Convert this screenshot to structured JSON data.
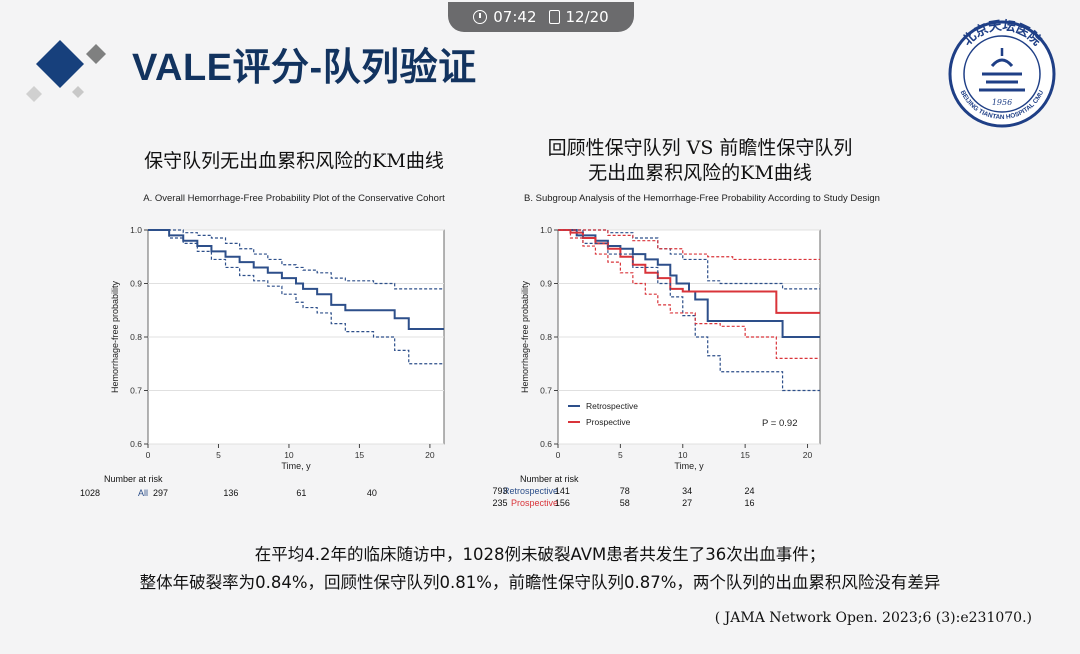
{
  "status": {
    "time": "07:42",
    "page": "12/20"
  },
  "title": "VALE评分-队列验证",
  "logo": {
    "text_top": "北京天坛医院",
    "text_ring": "BEIJING TIANTAN HOSPITAL CMU",
    "year": "1956"
  },
  "chart_data": [
    {
      "type": "line",
      "chart_title": "保守队列无出血累积风险的KM曲线",
      "title": "A. Overall Hemorrhage-Free Probability Plot of the Conservative Cohort",
      "xlabel": "Time, y",
      "ylabel": "Hemorrhage-free probability",
      "xlim": [
        0,
        21
      ],
      "ylim": [
        0.6,
        1.0
      ],
      "xticks": [
        "0",
        "5",
        "10",
        "15",
        "20"
      ],
      "yticks": [
        "0.6",
        "0.7",
        "0.8",
        "0.9",
        "1.0"
      ],
      "grid": true,
      "series": [
        {
          "color": "#2d4f8a",
          "style": "solid",
          "x": [
            0,
            1.5,
            2.5,
            3.5,
            4.5,
            5.5,
            6.5,
            7.5,
            8.5,
            9.5,
            10.5,
            11,
            12,
            13,
            14,
            16,
            17.5,
            18.5,
            21
          ],
          "y": [
            1.0,
            0.99,
            0.98,
            0.97,
            0.96,
            0.95,
            0.94,
            0.93,
            0.92,
            0.91,
            0.9,
            0.89,
            0.88,
            0.86,
            0.85,
            0.85,
            0.835,
            0.815,
            0.815
          ]
        },
        {
          "color": "#2d4f8a",
          "style": "dashed",
          "x": [
            0,
            1.5,
            2.5,
            3.5,
            4.5,
            5.5,
            6.5,
            7.5,
            8.5,
            9.5,
            10.5,
            11,
            12,
            13,
            14,
            16,
            17.5,
            18.5,
            21
          ],
          "y": [
            1.0,
            1.0,
            0.995,
            0.99,
            0.985,
            0.975,
            0.965,
            0.955,
            0.945,
            0.935,
            0.93,
            0.925,
            0.92,
            0.91,
            0.905,
            0.9,
            0.89,
            0.89,
            0.89
          ]
        },
        {
          "color": "#2d4f8a",
          "style": "dashed",
          "x": [
            0,
            1.5,
            2.5,
            3.5,
            4.5,
            5.5,
            6.5,
            7.5,
            8.5,
            9.5,
            10.5,
            11,
            12,
            13,
            14,
            16,
            17.5,
            18.5,
            21
          ],
          "y": [
            1.0,
            0.985,
            0.975,
            0.96,
            0.945,
            0.93,
            0.915,
            0.905,
            0.895,
            0.88,
            0.865,
            0.855,
            0.845,
            0.825,
            0.81,
            0.8,
            0.775,
            0.75,
            0.75
          ]
        }
      ],
      "risk_table": {
        "label": "Number at risk",
        "rows": [
          {
            "name": "All",
            "color": "#2d4f8a",
            "values": [
              "1028",
              "297",
              "136",
              "61",
              "40"
            ]
          }
        ]
      }
    },
    {
      "type": "line",
      "chart_title": "回顾性保守队列 VS 前瞻性保守队列",
      "chart_title_2": "无出血累积风险的KM曲线",
      "title": "B. Subgroup Analysis of the Hemorrhage-Free Probability According to Study Design",
      "xlabel": "Time, y",
      "ylabel": "Hemorrhage-free probability",
      "xlim": [
        0,
        21
      ],
      "ylim": [
        0.6,
        1.0
      ],
      "xticks": [
        "0",
        "5",
        "10",
        "15",
        "20"
      ],
      "yticks": [
        "0.6",
        "0.7",
        "0.8",
        "0.9",
        "1.0"
      ],
      "grid": true,
      "legend": "bottom-left",
      "annotation": "P = 0.92",
      "series": [
        {
          "name": "Retrospective",
          "color": "#2d4f8a",
          "style": "solid",
          "x": [
            0,
            1.5,
            3,
            4,
            5,
            6,
            7,
            8,
            9,
            9.5,
            10.5,
            11,
            12,
            13,
            16,
            18,
            21
          ],
          "y": [
            1.0,
            0.99,
            0.98,
            0.97,
            0.965,
            0.955,
            0.945,
            0.935,
            0.915,
            0.9,
            0.885,
            0.87,
            0.83,
            0.83,
            0.83,
            0.8,
            0.8
          ]
        },
        {
          "name": "Prospective",
          "color": "#d9343a",
          "style": "solid",
          "x": [
            0,
            1,
            2,
            3,
            4,
            5,
            6,
            7,
            8,
            9,
            10,
            11,
            12,
            14,
            17.5,
            21
          ],
          "y": [
            1.0,
            0.995,
            0.985,
            0.975,
            0.965,
            0.95,
            0.935,
            0.92,
            0.91,
            0.89,
            0.885,
            0.885,
            0.885,
            0.885,
            0.845,
            0.845
          ]
        },
        {
          "color": "#2d4f8a",
          "style": "dashed",
          "x": [
            0,
            2,
            4,
            6,
            8,
            9,
            10,
            12,
            13,
            16,
            18,
            21
          ],
          "y": [
            1.0,
            1.0,
            0.995,
            0.985,
            0.965,
            0.955,
            0.945,
            0.905,
            0.9,
            0.9,
            0.89,
            0.89
          ]
        },
        {
          "color": "#2d4f8a",
          "style": "dashed",
          "x": [
            0,
            2,
            4,
            6,
            8,
            9,
            10,
            11,
            12,
            13,
            16,
            18,
            21
          ],
          "y": [
            1.0,
            0.975,
            0.955,
            0.93,
            0.9,
            0.875,
            0.84,
            0.8,
            0.765,
            0.735,
            0.735,
            0.7,
            0.7
          ]
        },
        {
          "color": "#d9343a",
          "style": "dashed",
          "x": [
            0,
            2,
            4,
            6,
            8,
            10,
            12,
            14,
            17.5,
            21
          ],
          "y": [
            1.0,
            1.0,
            0.99,
            0.98,
            0.965,
            0.955,
            0.95,
            0.945,
            0.945,
            0.945
          ]
        },
        {
          "color": "#d9343a",
          "style": "dashed",
          "x": [
            0,
            1,
            2,
            3,
            4,
            5,
            6,
            7,
            8,
            9,
            11,
            13,
            15,
            17.5,
            21
          ],
          "y": [
            1.0,
            0.985,
            0.97,
            0.955,
            0.94,
            0.92,
            0.9,
            0.88,
            0.86,
            0.845,
            0.825,
            0.82,
            0.8,
            0.76,
            0.76
          ]
        }
      ],
      "risk_table": {
        "label": "Number at risk",
        "rows": [
          {
            "name": "Retrospective",
            "color": "#2d4f8a",
            "values": [
              "793",
              "141",
              "78",
              "34",
              "24"
            ]
          },
          {
            "name": "Prospective",
            "color": "#d9343a",
            "values": [
              "235",
              "156",
              "58",
              "27",
              "16"
            ]
          }
        ]
      }
    }
  ],
  "summary": {
    "line1": "在平均4.2年的临床随访中，1028例未破裂AVM患者共发生了36次出血事件；",
    "line2": "整体年破裂率为0.84%，回顾性保守队列0.81%，前瞻性保守队列0.87%，两个队列的出血累积风险没有差异"
  },
  "citation": "( JAMA Network Open. 2023;6 (3):e231070.)"
}
